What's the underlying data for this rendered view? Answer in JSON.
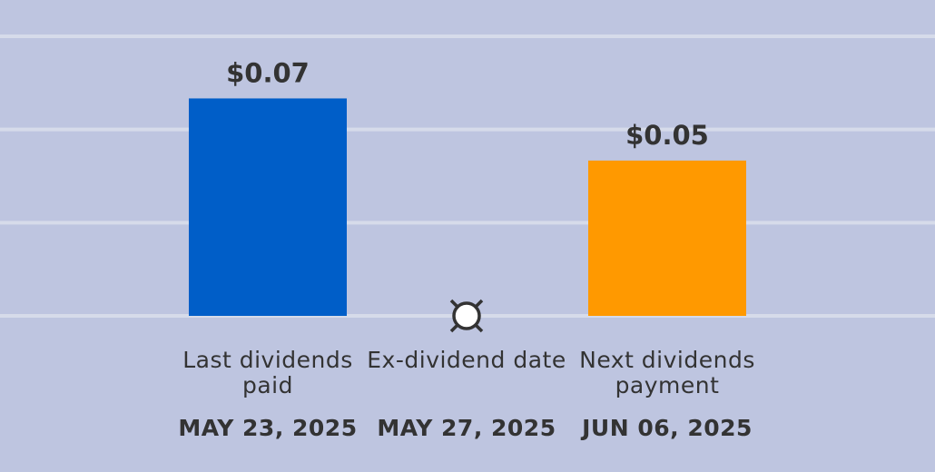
{
  "chart_data": {
    "type": "bar",
    "categories": [
      "Last dividends paid",
      "Ex-dividend date",
      "Next dividends payment"
    ],
    "dates": [
      "MAY 23, 2025",
      "MAY 27, 2025",
      "JUN 06, 2025"
    ],
    "values": [
      0.07,
      null,
      0.05
    ],
    "value_labels": [
      "$0.07",
      null,
      "$0.05"
    ],
    "colors": [
      "#005ec8",
      null,
      "#ff9900"
    ],
    "ylim": [
      0,
      0.09
    ],
    "yticks": [
      0,
      0.03,
      0.06,
      0.09
    ],
    "grid": true
  }
}
